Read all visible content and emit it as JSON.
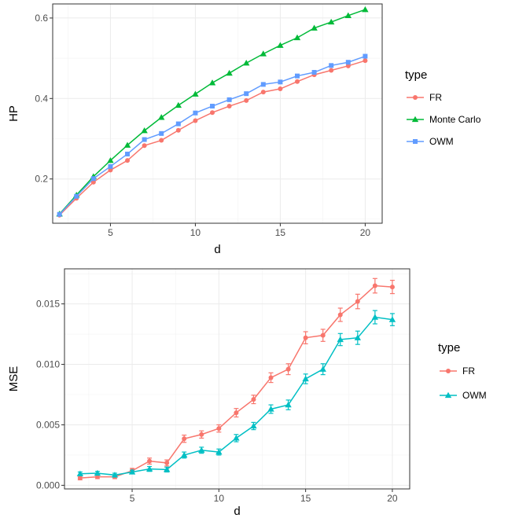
{
  "chart_data": [
    {
      "type": "line",
      "xlabel": "d",
      "ylabel": "HP",
      "xlim": [
        1.6,
        21.0
      ],
      "ylim": [
        0.09,
        0.635
      ],
      "xticks": [
        5,
        10,
        15,
        20
      ],
      "yticks": [
        0.2,
        0.4,
        0.6
      ],
      "xtick_labels": [
        "5",
        "10",
        "15",
        "20"
      ],
      "ytick_labels": [
        "0.2",
        "0.4",
        "0.6"
      ],
      "grid": true,
      "legend": {
        "title": "type",
        "position": "right"
      },
      "x": [
        2,
        3,
        4,
        5,
        6,
        7,
        8,
        9,
        10,
        11,
        12,
        13,
        14,
        15,
        16,
        17,
        18,
        19,
        20
      ],
      "series": [
        {
          "name": "FR",
          "color": "#F8766D",
          "marker": "circle",
          "values": [
            0.11,
            0.152,
            0.192,
            0.222,
            0.246,
            0.283,
            0.296,
            0.321,
            0.345,
            0.365,
            0.381,
            0.395,
            0.416,
            0.424,
            0.442,
            0.459,
            0.47,
            0.481,
            0.494
          ]
        },
        {
          "name": "Monte Carlo",
          "color": "#00BA38",
          "marker": "triangle",
          "values": [
            0.113,
            0.16,
            0.206,
            0.246,
            0.284,
            0.32,
            0.353,
            0.383,
            0.411,
            0.439,
            0.463,
            0.488,
            0.511,
            0.532,
            0.551,
            0.575,
            0.59,
            0.606,
            0.621
          ]
        },
        {
          "name": "OWM",
          "color": "#619CFF",
          "marker": "square",
          "values": [
            0.112,
            0.157,
            0.201,
            0.231,
            0.262,
            0.298,
            0.313,
            0.337,
            0.364,
            0.381,
            0.397,
            0.412,
            0.435,
            0.441,
            0.456,
            0.465,
            0.482,
            0.49,
            0.505
          ]
        }
      ]
    },
    {
      "type": "line",
      "xlabel": "d",
      "ylabel": "MSE",
      "xlim": [
        1.1,
        21.0
      ],
      "ylim": [
        -0.0003,
        0.0179
      ],
      "xticks": [
        5,
        10,
        15,
        20
      ],
      "yticks": [
        0.0,
        0.005,
        0.01,
        0.015
      ],
      "xtick_labels": [
        "5",
        "10",
        "15",
        "20"
      ],
      "ytick_labels": [
        "0.000",
        "0.005",
        "0.010",
        "0.015"
      ],
      "grid": true,
      "error_bars": true,
      "legend": {
        "title": "type",
        "position": "right"
      },
      "x": [
        2,
        3,
        4,
        5,
        6,
        7,
        8,
        9,
        10,
        11,
        12,
        13,
        14,
        15,
        16,
        17,
        18,
        19,
        20
      ],
      "series": [
        {
          "name": "FR",
          "color": "#F8766D",
          "marker": "circle",
          "values": [
            0.0006,
            0.0007,
            0.0007,
            0.0012,
            0.002,
            0.00185,
            0.00385,
            0.0042,
            0.0047,
            0.006,
            0.0071,
            0.0089,
            0.0096,
            0.0122,
            0.0124,
            0.0141,
            0.0152,
            0.0165,
            0.0164
          ],
          "errors": [
            0.00015,
            0.00015,
            0.00015,
            0.0002,
            0.00025,
            0.00025,
            0.0003,
            0.0003,
            0.0003,
            0.00035,
            0.00035,
            0.0004,
            0.00045,
            0.0005,
            0.0005,
            0.00055,
            0.0006,
            0.0006,
            0.00055
          ]
        },
        {
          "name": "OWM",
          "color": "#00BFC4",
          "marker": "triangle",
          "values": [
            0.00095,
            0.001,
            0.00085,
            0.0011,
            0.00135,
            0.0013,
            0.0025,
            0.0029,
            0.00275,
            0.0039,
            0.0049,
            0.0063,
            0.00665,
            0.0088,
            0.0096,
            0.01205,
            0.0122,
            0.0139,
            0.0137
          ],
          "errors": [
            0.00015,
            0.00015,
            0.00015,
            0.00015,
            0.0002,
            0.0002,
            0.00025,
            0.00025,
            0.00025,
            0.0003,
            0.0003,
            0.00035,
            0.0004,
            0.0004,
            0.00045,
            0.0005,
            0.00055,
            0.00055,
            0.0005
          ]
        }
      ]
    }
  ]
}
